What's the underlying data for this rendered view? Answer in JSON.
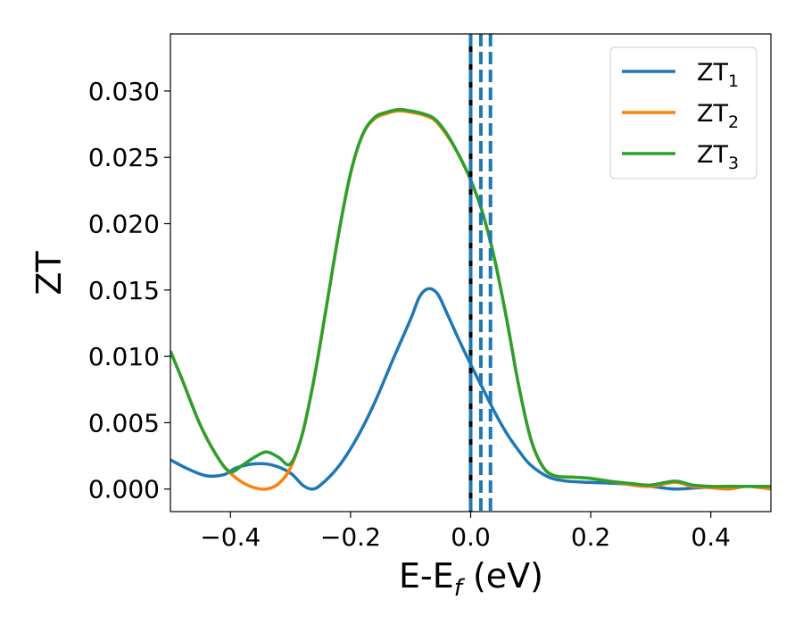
{
  "chart_data": {
    "type": "line",
    "title": "",
    "xlabel": {
      "main": "E-E",
      "subscript": "f",
      "suffix": " (eV)"
    },
    "ylabel": "ZT",
    "xlim": [
      -0.5,
      0.5
    ],
    "ylim": [
      -0.0017,
      0.0343
    ],
    "x_ticks": [
      -0.4,
      -0.2,
      0.0,
      0.2,
      0.4
    ],
    "x_tick_labels": [
      "−0.4",
      "−0.2",
      "0.0",
      "0.2",
      "0.4"
    ],
    "y_ticks": [
      0.0,
      0.005,
      0.01,
      0.015,
      0.02,
      0.025,
      0.03
    ],
    "y_tick_labels": [
      "0.000",
      "0.005",
      "0.010",
      "0.015",
      "0.020",
      "0.025",
      "0.030"
    ],
    "grid": false,
    "legend_position": "top-right",
    "vertical_lines": [
      {
        "x": 0.0,
        "style": "solid",
        "color": "#000000"
      },
      {
        "x": 0.0,
        "style": "dashed",
        "color": "#1f77b4"
      },
      {
        "x": 0.017,
        "style": "dashed",
        "color": "#1f77b4"
      },
      {
        "x": 0.033,
        "style": "dashed",
        "color": "#1f77b4"
      }
    ],
    "series": [
      {
        "name": "ZT",
        "subscript": "1",
        "color": "#1f77b4",
        "points": [
          [
            -0.5,
            0.0022
          ],
          [
            -0.47,
            0.0015
          ],
          [
            -0.44,
            0.001
          ],
          [
            -0.41,
            0.0011
          ],
          [
            -0.39,
            0.0016
          ],
          [
            -0.36,
            0.0019
          ],
          [
            -0.33,
            0.0018
          ],
          [
            -0.3,
            0.0012
          ],
          [
            -0.28,
            0.0003
          ],
          [
            -0.265,
            0.0
          ],
          [
            -0.25,
            0.0003
          ],
          [
            -0.22,
            0.0017
          ],
          [
            -0.19,
            0.0038
          ],
          [
            -0.16,
            0.0065
          ],
          [
            -0.13,
            0.0097
          ],
          [
            -0.1,
            0.0128
          ],
          [
            -0.085,
            0.0145
          ],
          [
            -0.07,
            0.0151
          ],
          [
            -0.055,
            0.0147
          ],
          [
            -0.04,
            0.0133
          ],
          [
            -0.02,
            0.0113
          ],
          [
            0.0,
            0.0094
          ],
          [
            0.02,
            0.0076
          ],
          [
            0.04,
            0.0058
          ],
          [
            0.06,
            0.0042
          ],
          [
            0.08,
            0.0029
          ],
          [
            0.1,
            0.0018
          ],
          [
            0.13,
            0.0009
          ],
          [
            0.16,
            0.0006
          ],
          [
            0.2,
            0.0005
          ],
          [
            0.25,
            0.0004
          ],
          [
            0.3,
            0.0002
          ],
          [
            0.34,
            0.0
          ],
          [
            0.38,
            0.0001
          ],
          [
            0.42,
            0.0002
          ],
          [
            0.46,
            0.0002
          ],
          [
            0.5,
            0.0002
          ]
        ]
      },
      {
        "name": "ZT",
        "subscript": "2",
        "color": "#ff7f0e",
        "points": [
          [
            -0.5,
            0.0104
          ],
          [
            -0.48,
            0.0082
          ],
          [
            -0.45,
            0.0048
          ],
          [
            -0.42,
            0.0023
          ],
          [
            -0.4,
            0.0012
          ],
          [
            -0.38,
            0.0005
          ],
          [
            -0.36,
            0.0001
          ],
          [
            -0.34,
            0.0
          ],
          [
            -0.32,
            0.0004
          ],
          [
            -0.3,
            0.0016
          ],
          [
            -0.28,
            0.0042
          ],
          [
            -0.26,
            0.0085
          ],
          [
            -0.24,
            0.0138
          ],
          [
            -0.22,
            0.0192
          ],
          [
            -0.2,
            0.0238
          ],
          [
            -0.18,
            0.0267
          ],
          [
            -0.16,
            0.0279
          ],
          [
            -0.14,
            0.0283
          ],
          [
            -0.12,
            0.0285
          ],
          [
            -0.1,
            0.0284
          ],
          [
            -0.08,
            0.0282
          ],
          [
            -0.06,
            0.0278
          ],
          [
            -0.04,
            0.0267
          ],
          [
            -0.02,
            0.0252
          ],
          [
            0.0,
            0.0233
          ],
          [
            0.02,
            0.0208
          ],
          [
            0.04,
            0.0173
          ],
          [
            0.06,
            0.0128
          ],
          [
            0.08,
            0.0078
          ],
          [
            0.1,
            0.0038
          ],
          [
            0.12,
            0.0017
          ],
          [
            0.14,
            0.001
          ],
          [
            0.17,
            0.0009
          ],
          [
            0.2,
            0.0008
          ],
          [
            0.23,
            0.0006
          ],
          [
            0.27,
            0.0003
          ],
          [
            0.3,
            0.0002
          ],
          [
            0.34,
            0.0005
          ],
          [
            0.37,
            0.0002
          ],
          [
            0.4,
            0.0001
          ],
          [
            0.43,
            0.0
          ],
          [
            0.46,
            0.0002
          ],
          [
            0.5,
            0.0
          ]
        ]
      },
      {
        "name": "ZT",
        "subscript": "3",
        "color": "#2ca02c",
        "points": [
          [
            -0.5,
            0.0104
          ],
          [
            -0.48,
            0.0082
          ],
          [
            -0.45,
            0.0048
          ],
          [
            -0.42,
            0.0023
          ],
          [
            -0.4,
            0.0013
          ],
          [
            -0.38,
            0.0018
          ],
          [
            -0.36,
            0.0024
          ],
          [
            -0.34,
            0.0028
          ],
          [
            -0.32,
            0.0024
          ],
          [
            -0.3,
            0.0019
          ],
          [
            -0.28,
            0.0042
          ],
          [
            -0.26,
            0.0085
          ],
          [
            -0.24,
            0.0138
          ],
          [
            -0.22,
            0.0192
          ],
          [
            -0.2,
            0.0238
          ],
          [
            -0.18,
            0.0267
          ],
          [
            -0.16,
            0.028
          ],
          [
            -0.14,
            0.0284
          ],
          [
            -0.12,
            0.0286
          ],
          [
            -0.1,
            0.0285
          ],
          [
            -0.08,
            0.0283
          ],
          [
            -0.06,
            0.0279
          ],
          [
            -0.04,
            0.0268
          ],
          [
            -0.02,
            0.0252
          ],
          [
            0.0,
            0.0233
          ],
          [
            0.02,
            0.0208
          ],
          [
            0.04,
            0.0173
          ],
          [
            0.06,
            0.0128
          ],
          [
            0.08,
            0.0078
          ],
          [
            0.1,
            0.0038
          ],
          [
            0.12,
            0.0017
          ],
          [
            0.14,
            0.001
          ],
          [
            0.17,
            0.0009
          ],
          [
            0.2,
            0.0008
          ],
          [
            0.23,
            0.0006
          ],
          [
            0.27,
            0.0004
          ],
          [
            0.3,
            0.0003
          ],
          [
            0.34,
            0.0006
          ],
          [
            0.37,
            0.0003
          ],
          [
            0.4,
            0.0002
          ],
          [
            0.43,
            0.0002
          ],
          [
            0.46,
            0.0002
          ],
          [
            0.5,
            0.0002
          ]
        ]
      }
    ]
  }
}
